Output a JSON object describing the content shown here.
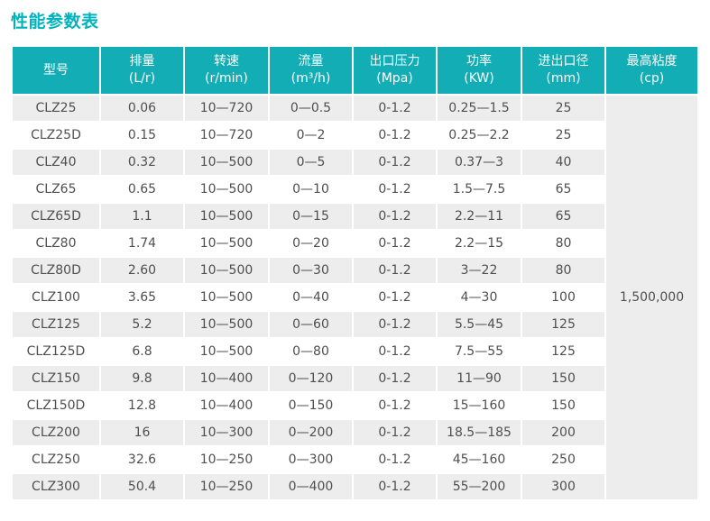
{
  "title": "性能参数表",
  "colors": {
    "accent": "#12adb5",
    "title": "#00b3bb",
    "row_alt": "#ededed",
    "header_text": "#ffffff",
    "cell_text": "#4f4f4f"
  },
  "table": {
    "columns": [
      {
        "key": "model",
        "label": "型号",
        "unit": ""
      },
      {
        "key": "displacement",
        "label": "排量",
        "unit": "(L/r)"
      },
      {
        "key": "speed",
        "label": "转速",
        "unit": "(r/min)"
      },
      {
        "key": "flow",
        "label": "流量",
        "unit": "(m³/h)"
      },
      {
        "key": "outlet-pressure",
        "label": "出口压力",
        "unit": "(Mpa)"
      },
      {
        "key": "power",
        "label": "功率",
        "unit": "(KW)"
      },
      {
        "key": "port-diameter",
        "label": "进出口径",
        "unit": "(mm)"
      },
      {
        "key": "max-viscosity",
        "label": "最高粘度",
        "unit": "(cp)"
      }
    ],
    "rows": [
      [
        "CLZ25",
        "0.06",
        "10—720",
        "0—0.5",
        "0-1.2",
        "0.25—1.5",
        "25"
      ],
      [
        "CLZ25D",
        "0.15",
        "10—720",
        "0—2",
        "0-1.2",
        "0.25—2.2",
        "25"
      ],
      [
        "CLZ40",
        "0.32",
        "10—500",
        "0—5",
        "0-1.2",
        "0.37—3",
        "40"
      ],
      [
        "CLZ65",
        "0.65",
        "10—500",
        "0—10",
        "0-1.2",
        "1.5—7.5",
        "65"
      ],
      [
        "CLZ65D",
        "1.1",
        "10—500",
        "0—15",
        "0-1.2",
        "2.2—11",
        "65"
      ],
      [
        "CLZ80",
        "1.74",
        "10—500",
        "0—20",
        "0-1.2",
        "2.2—15",
        "80"
      ],
      [
        "CLZ80D",
        "2.60",
        "10—500",
        "0—30",
        "0-1.2",
        "3—22",
        "80"
      ],
      [
        "CLZ100",
        "3.65",
        "10—500",
        "0—40",
        "0-1.2",
        "4—30",
        "100"
      ],
      [
        "CLZ125",
        "5.2",
        "10—500",
        "0—60",
        "0-1.2",
        "5.5—45",
        "125"
      ],
      [
        "CLZ125D",
        "6.8",
        "10—500",
        "0—80",
        "0-1.2",
        "7.5—55",
        "125"
      ],
      [
        "CLZ150",
        "9.8",
        "10—400",
        "0—120",
        "0-1.2",
        "11—90",
        "150"
      ],
      [
        "CLZ150D",
        "12.8",
        "10—400",
        "0—150",
        "0-1.2",
        "15—160",
        "150"
      ],
      [
        "CLZ200",
        "16",
        "10—300",
        "0—200",
        "0-1.2",
        "18.5—185",
        "200"
      ],
      [
        "CLZ250",
        "32.6",
        "10—250",
        "0—300",
        "0-1.2",
        "45—160",
        "250"
      ],
      [
        "CLZ300",
        "50.4",
        "10—250",
        "0—400",
        "0-1.2",
        "55—200",
        "300"
      ]
    ],
    "max_viscosity_value": "1,500,000"
  }
}
